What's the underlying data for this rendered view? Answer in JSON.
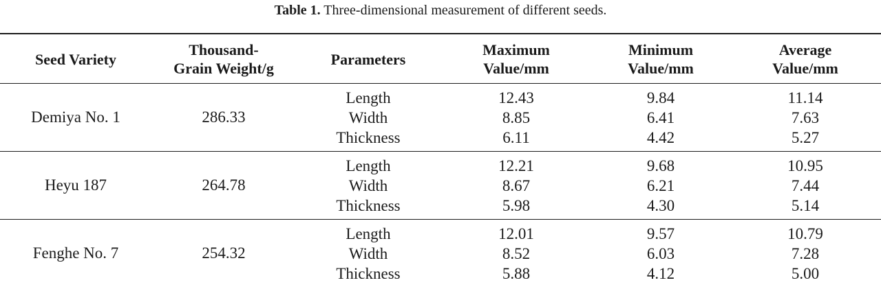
{
  "caption": {
    "label": "Table 1.",
    "text": " Three-dimensional measurement of different seeds."
  },
  "headers": {
    "variety": "Seed Variety",
    "weight": "Thousand-\nGrain Weight/g",
    "parameters": "Parameters",
    "max": "Maximum\nValue/mm",
    "min": "Minimum\nValue/mm",
    "avg": "Average\nValue/mm"
  },
  "rows": [
    {
      "variety": "Demiya No. 1",
      "weight": "286.33",
      "parameters": [
        "Length",
        "Width",
        "Thickness"
      ],
      "max": [
        "12.43",
        "8.85",
        "6.11"
      ],
      "min": [
        "9.84",
        "6.41",
        "4.42"
      ],
      "avg": [
        "11.14",
        "7.63",
        "5.27"
      ]
    },
    {
      "variety": "Heyu 187",
      "weight": "264.78",
      "parameters": [
        "Length",
        "Width",
        "Thickness"
      ],
      "max": [
        "12.21",
        "8.67",
        "5.98"
      ],
      "min": [
        "9.68",
        "6.21",
        "4.30"
      ],
      "avg": [
        "10.95",
        "7.44",
        "5.14"
      ]
    },
    {
      "variety": "Fenghe No. 7",
      "weight": "254.32",
      "parameters": [
        "Length",
        "Width",
        "Thickness"
      ],
      "max": [
        "12.01",
        "8.52",
        "5.88"
      ],
      "min": [
        "9.57",
        "6.03",
        "4.12"
      ],
      "avg": [
        "10.79",
        "7.28",
        "5.00"
      ]
    }
  ]
}
